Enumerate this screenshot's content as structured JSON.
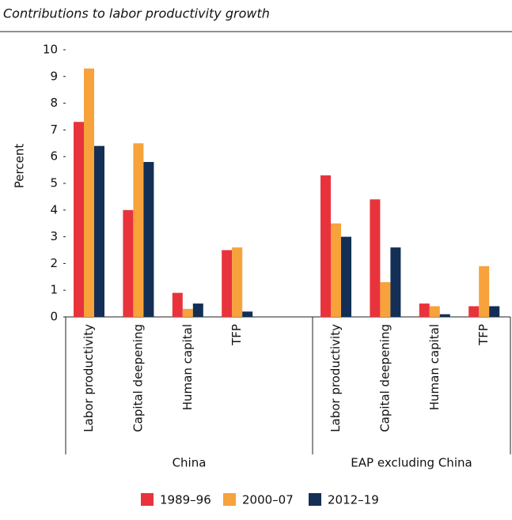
{
  "chart_data": {
    "type": "bar",
    "title": "Contributions to labor productivity growth",
    "y_label": "Percent",
    "groups": [
      {
        "name": "China",
        "categories": [
          "Labor productivity",
          "Capital deepening",
          "Human capital",
          "TFP"
        ]
      },
      {
        "name": "EAP excluding China",
        "categories": [
          "Labor productivity",
          "Capital deepening",
          "Human capital",
          "TFP"
        ]
      }
    ],
    "series": [
      {
        "name": "1989–96",
        "color": "#e8333c",
        "values": [
          7.3,
          4.0,
          0.9,
          2.5,
          5.3,
          4.4,
          0.5,
          0.4
        ]
      },
      {
        "name": "2000–07",
        "color": "#f7a23a",
        "values": [
          9.3,
          6.5,
          0.3,
          2.6,
          3.5,
          1.3,
          0.4,
          1.9
        ]
      },
      {
        "name": "2012–19",
        "color": "#132f55",
        "values": [
          6.4,
          5.8,
          0.5,
          0.2,
          3.0,
          2.6,
          0.1,
          0.4
        ]
      }
    ],
    "ylim": [
      0,
      10
    ],
    "yticks": [
      0,
      1,
      2,
      3,
      4,
      5,
      6,
      7,
      8,
      9,
      10
    ]
  }
}
